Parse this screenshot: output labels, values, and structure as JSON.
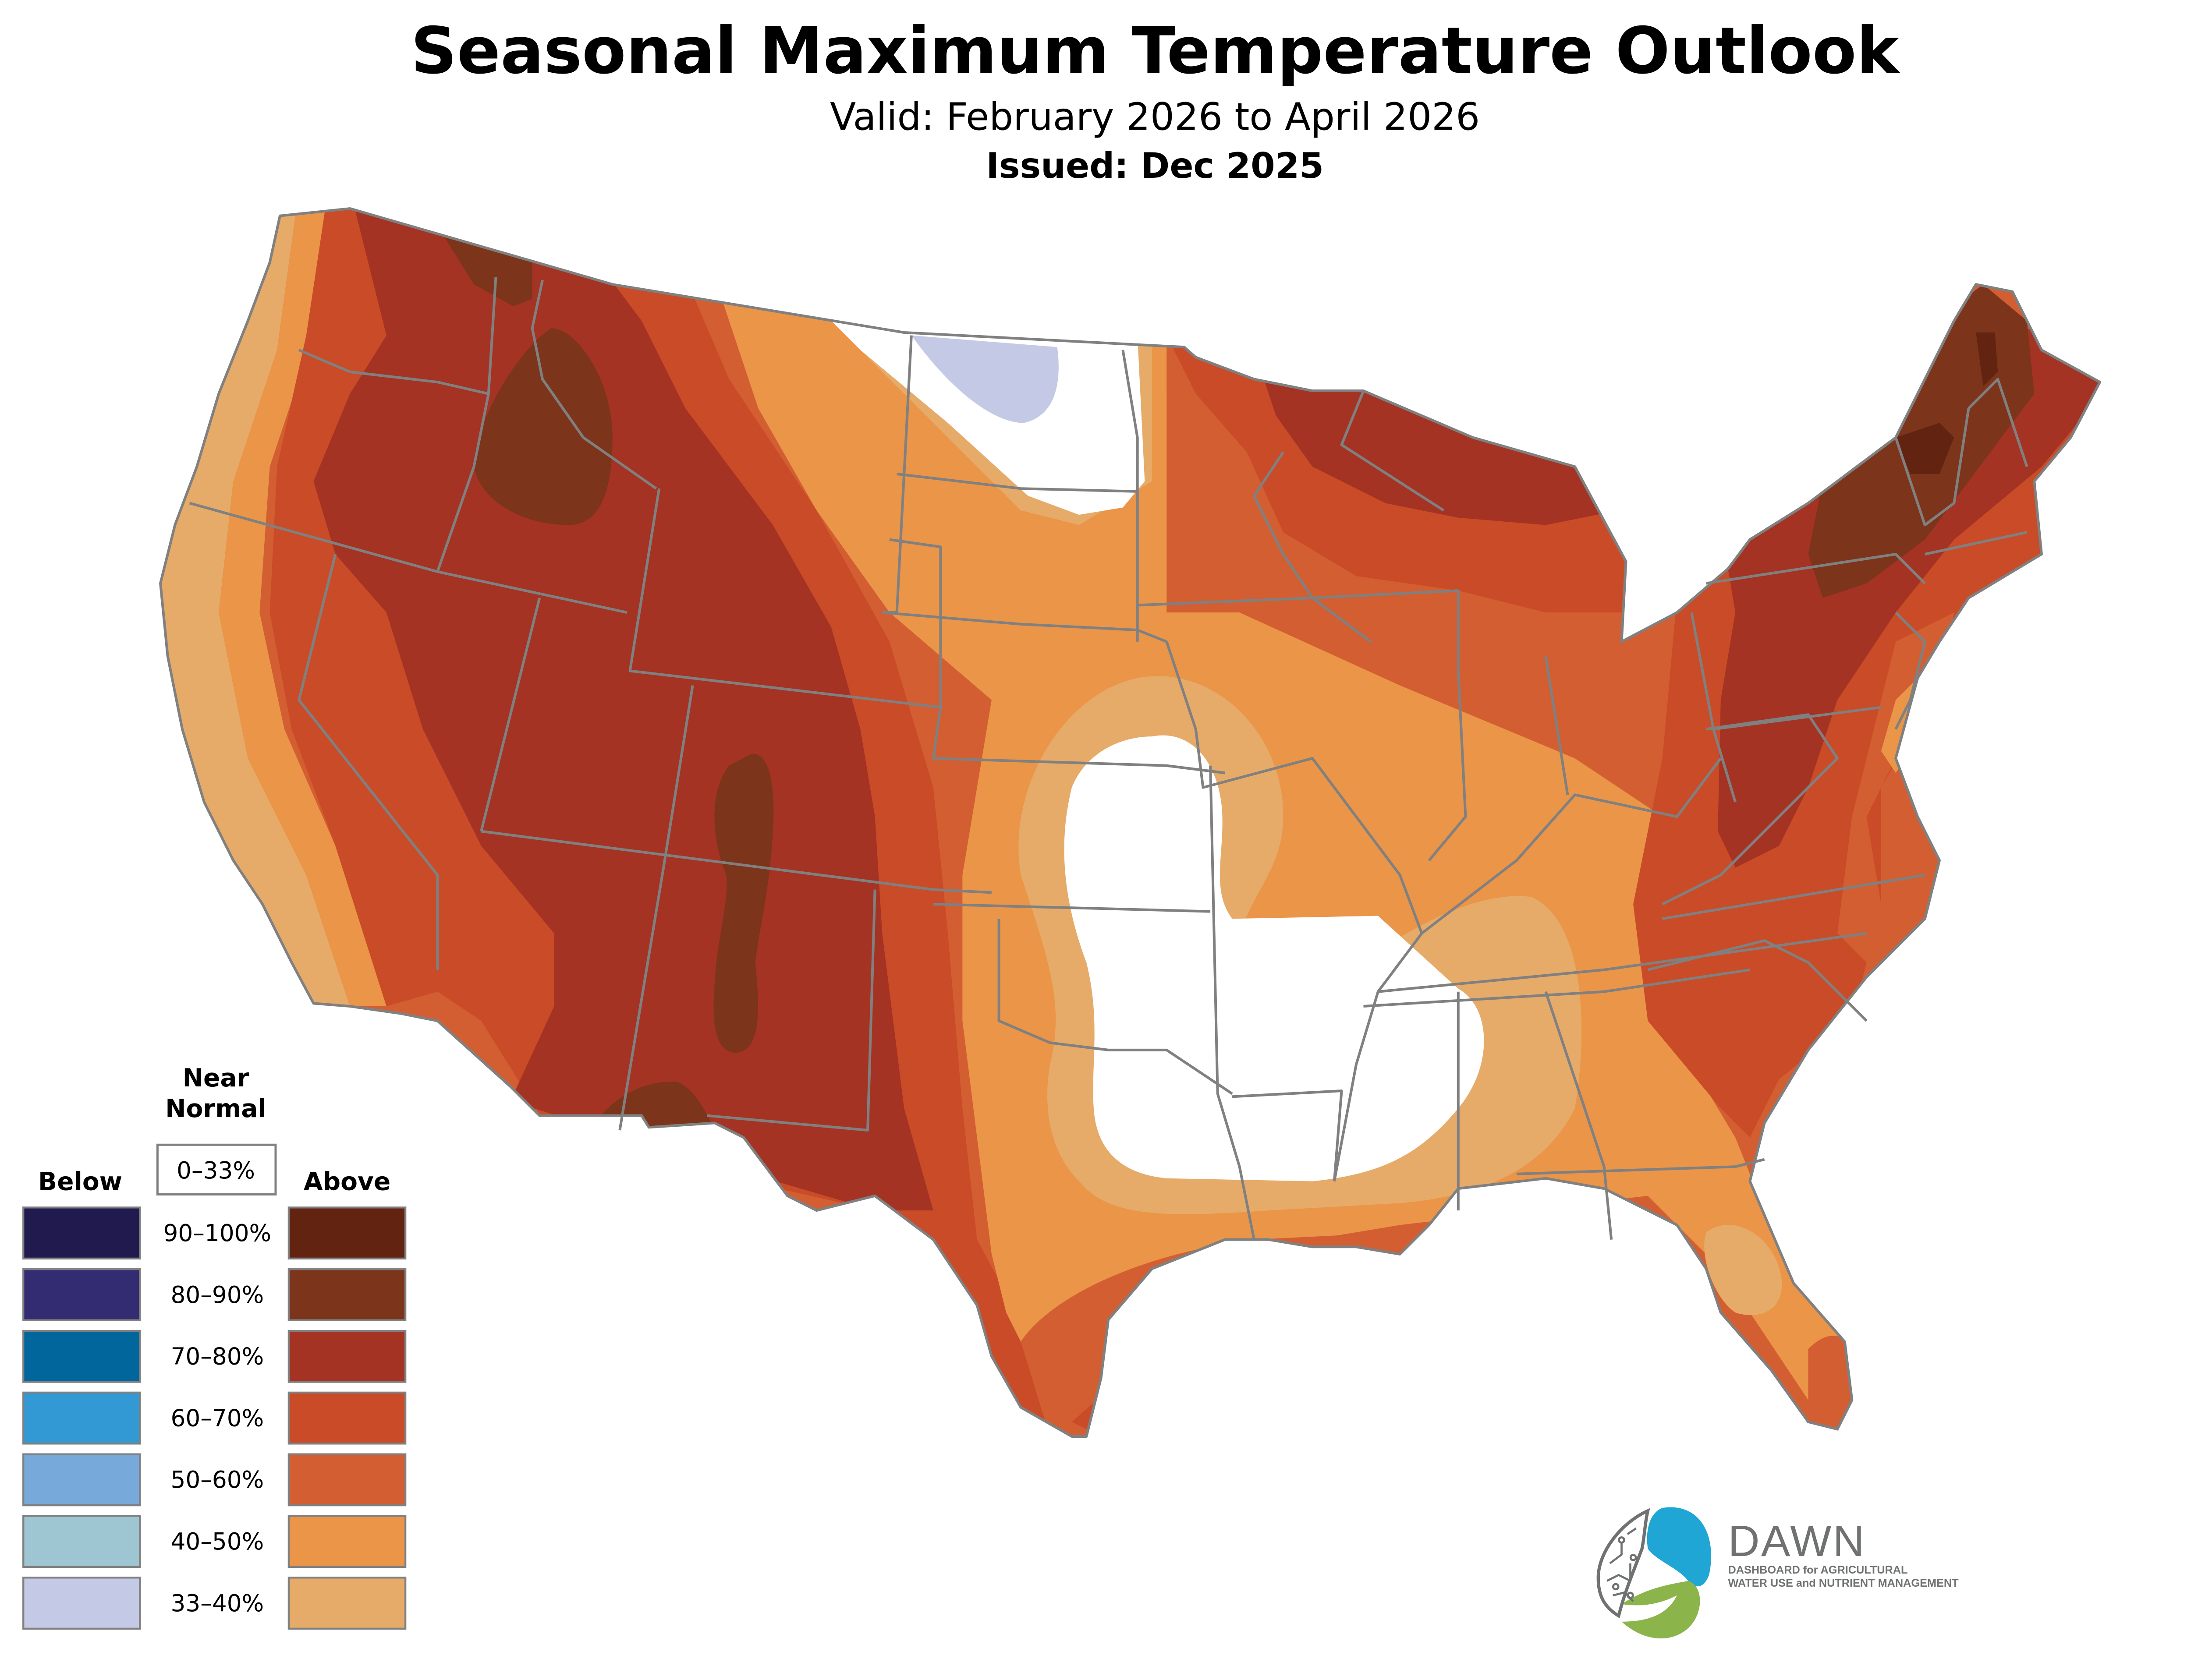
{
  "header": {
    "title": "Seasonal Maximum Temperature Outlook",
    "valid": "Valid: February 2026 to April 2026",
    "issued": "Issued: Dec 2025"
  },
  "legend": {
    "near_normal_line1": "Near",
    "near_normal_line2": "Normal",
    "near_normal_range": "0–33%",
    "below_label": "Below",
    "above_label": "Above",
    "rows": [
      {
        "range": "90–100%",
        "below_color": "#201a4f",
        "above_color": "#622410"
      },
      {
        "range": "80–90%",
        "below_color": "#332c72",
        "above_color": "#7c341b"
      },
      {
        "range": "70–80%",
        "below_color": "#00669c",
        "above_color": "#a43323"
      },
      {
        "range": "60–70%",
        "below_color": "#3399d4",
        "above_color": "#ca4b27"
      },
      {
        "range": "50–60%",
        "below_color": "#77aadb",
        "above_color": "#d35e32"
      },
      {
        "range": "40–50%",
        "below_color": "#9dc5d2",
        "above_color": "#ea9548"
      },
      {
        "range": "33–40%",
        "below_color": "#c4cae5",
        "above_color": "#e6ab69"
      }
    ]
  },
  "map": {
    "boundary_color": "#808080",
    "near_normal_color": "#ffffff"
  },
  "logo": {
    "name": "DAWN",
    "tagline_line1": "DASHBOARD for AGRICULTURAL",
    "tagline_line2": "WATER USE and NUTRIENT MANAGEMENT",
    "blue": "#1fa6d4",
    "green": "#8bb44a",
    "gray": "#707272"
  }
}
